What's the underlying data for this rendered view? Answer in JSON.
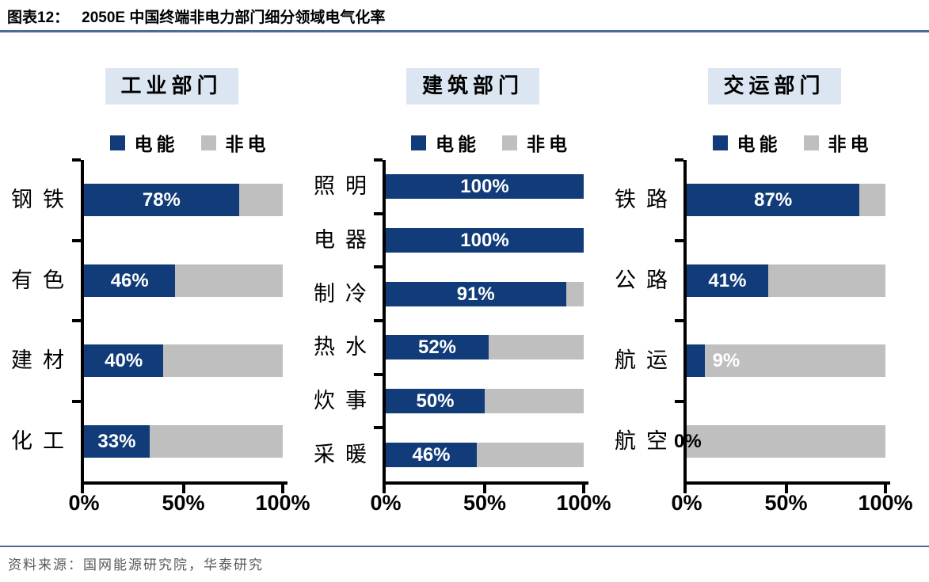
{
  "title": {
    "label": "图表12：",
    "text": "2050E 中国终端非电力部门细分领域电气化率"
  },
  "source": {
    "text": "资料来源：国网能源研究院，华泰研究"
  },
  "colors": {
    "electric": "#113C79",
    "non_electric": "#BFBFBF",
    "header_bg": "#DCE6F2",
    "divider": "#4D6B99",
    "source_text": "#595959",
    "axis": "#000000",
    "bar_label": "#FFFFFF",
    "bar_label_zero": "#000000"
  },
  "chart_data": [
    {
      "type": "bar",
      "orientation": "horizontal",
      "stacked": true,
      "title": "工业部门",
      "categories": [
        "钢铁",
        "有色",
        "建材",
        "化工"
      ],
      "series": [
        {
          "name": "电能",
          "values": [
            78,
            46,
            40,
            33
          ]
        },
        {
          "name": "非电",
          "values": [
            22,
            54,
            60,
            67
          ]
        }
      ],
      "value_labels": [
        "78%",
        "46%",
        "40%",
        "33%"
      ],
      "xlim": [
        0,
        100
      ],
      "x_ticks": [
        "0%",
        "50%",
        "100%"
      ],
      "legend_position": "top",
      "grid": false
    },
    {
      "type": "bar",
      "orientation": "horizontal",
      "stacked": true,
      "title": "建筑部门",
      "categories": [
        "照明",
        "电器",
        "制冷",
        "热水",
        "炊事",
        "采暖"
      ],
      "series": [
        {
          "name": "电能",
          "values": [
            100,
            100,
            91,
            52,
            50,
            46
          ]
        },
        {
          "name": "非电",
          "values": [
            0,
            0,
            9,
            48,
            50,
            54
          ]
        }
      ],
      "value_labels": [
        "100%",
        "100%",
        "91%",
        "52%",
        "50%",
        "46%"
      ],
      "xlim": [
        0,
        100
      ],
      "x_ticks": [
        "0%",
        "50%",
        "100%"
      ],
      "legend_position": "top",
      "grid": false
    },
    {
      "type": "bar",
      "orientation": "horizontal",
      "stacked": true,
      "title": "交运部门",
      "categories": [
        "铁路",
        "公路",
        "航运",
        "航空"
      ],
      "series": [
        {
          "name": "电能",
          "values": [
            87,
            41,
            9,
            0
          ]
        },
        {
          "name": "非电",
          "values": [
            13,
            59,
            91,
            100
          ]
        }
      ],
      "value_labels": [
        "87%",
        "41%",
        "9%",
        "0%"
      ],
      "xlim": [
        0,
        100
      ],
      "x_ticks": [
        "0%",
        "50%",
        "100%"
      ],
      "legend_position": "top",
      "grid": false
    }
  ]
}
